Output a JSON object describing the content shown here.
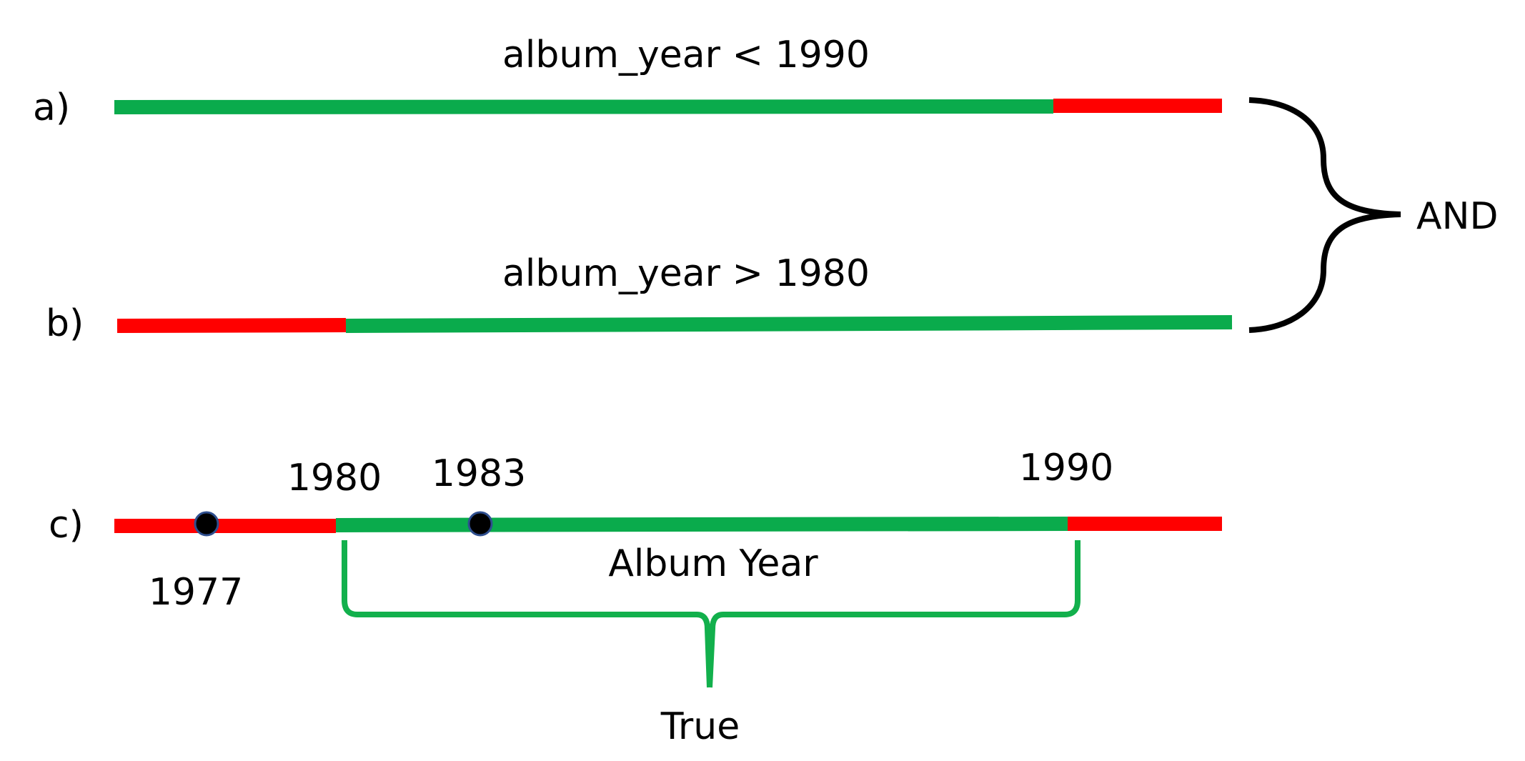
{
  "rows": {
    "a": {
      "label": "a)",
      "condition": "album_year < 1990"
    },
    "b": {
      "label": "b)",
      "condition": "album_year > 1980"
    },
    "c": {
      "label": "c)",
      "tick_1980": "1980",
      "tick_1983": "1983",
      "tick_1990": "1990",
      "tick_1977": "1977",
      "axis_label": "Album Year",
      "result_label": "True",
      "points": [
        1977,
        1983
      ]
    }
  },
  "combiner_label": "AND",
  "colors": {
    "true_segment": "#0aab4c",
    "false_segment": "#ff0000",
    "brace_true": "#12b04c",
    "brace_and": "#000000",
    "point_fill": "#000000",
    "point_stroke": "#2f4f8f"
  }
}
